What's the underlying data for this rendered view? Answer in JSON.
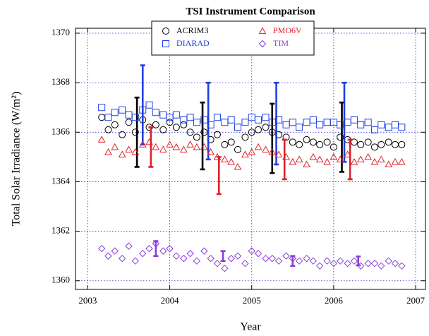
{
  "chart_data": {
    "type": "scatter",
    "title": "TSI Instrument Comparison",
    "x_label": "Year",
    "y_label": "Total Solar Irradiance (W/m²)",
    "xlim": [
      2002.85,
      2007.12
    ],
    "ylim": [
      1359.65,
      1370.2
    ],
    "xticks": [
      2003,
      2004,
      2005,
      2006,
      2007
    ],
    "yticks": [
      1360,
      1362,
      1364,
      1366,
      1368,
      1370
    ],
    "grid": true,
    "grid_color": "#2a2ad0",
    "legend": "upper center",
    "x": [
      2003.17,
      2003.25,
      2003.33,
      2003.42,
      2003.5,
      2003.58,
      2003.67,
      2003.75,
      2003.83,
      2003.92,
      2004.0,
      2004.08,
      2004.17,
      2004.25,
      2004.33,
      2004.42,
      2004.5,
      2004.58,
      2004.67,
      2004.75,
      2004.83,
      2004.92,
      2005.0,
      2005.08,
      2005.17,
      2005.25,
      2005.33,
      2005.42,
      2005.5,
      2005.58,
      2005.67,
      2005.75,
      2005.83,
      2005.92,
      2006.0,
      2006.08,
      2006.17,
      2006.25,
      2006.33,
      2006.42,
      2006.5,
      2006.58,
      2006.67,
      2006.75,
      2006.83
    ],
    "series": [
      {
        "name": "ACRIM3",
        "color": "#000000",
        "marker": "circle",
        "values": [
          1366.6,
          1366.1,
          1366.3,
          1365.9,
          1366.4,
          1366.0,
          1366.5,
          1366.2,
          1366.3,
          1366.1,
          1366.4,
          1366.2,
          1366.3,
          1366.0,
          1365.8,
          1366.0,
          1365.7,
          1365.9,
          1365.5,
          1365.6,
          1365.3,
          1365.8,
          1366.0,
          1366.1,
          1366.2,
          1366.0,
          1365.9,
          1365.8,
          1365.6,
          1365.5,
          1365.7,
          1365.6,
          1365.5,
          1365.6,
          1365.4,
          1365.8,
          1365.7,
          1365.6,
          1365.5,
          1365.6,
          1365.4,
          1365.5,
          1365.6,
          1365.5,
          1365.5
        ],
        "error_bars": {
          "x": [
            2003.6,
            2004.4,
            2005.25,
            2006.1
          ],
          "values": [
            1366.0,
            1365.85,
            1365.75,
            1365.8
          ],
          "errors": [
            1.4,
            1.35,
            1.4,
            1.4
          ]
        }
      },
      {
        "name": "DIARAD",
        "color": "#1f3fe0",
        "marker": "square",
        "values": [
          1367.0,
          1366.6,
          1366.8,
          1366.9,
          1366.7,
          1366.6,
          1366.9,
          1367.1,
          1366.8,
          1366.7,
          1366.6,
          1366.7,
          1366.5,
          1366.6,
          1366.4,
          1366.5,
          1366.3,
          1366.6,
          1366.4,
          1366.5,
          1366.2,
          1366.4,
          1366.6,
          1366.5,
          1366.6,
          1366.4,
          1366.5,
          1366.3,
          1366.4,
          1366.2,
          1366.4,
          1366.5,
          1366.3,
          1366.4,
          1366.4,
          1366.3,
          1366.4,
          1366.5,
          1366.3,
          1366.4,
          1366.1,
          1366.3,
          1366.2,
          1366.3,
          1366.2
        ],
        "error_bars": {
          "x": [
            2003.67,
            2004.47,
            2005.3,
            2006.13
          ],
          "values": [
            1367.1,
            1366.45,
            1366.35,
            1366.4
          ],
          "errors": [
            1.6,
            1.55,
            1.65,
            1.6
          ]
        }
      },
      {
        "name": "PMO6V",
        "color": "#e0202a",
        "marker": "triangle",
        "values": [
          1365.7,
          1365.2,
          1365.4,
          1365.1,
          1365.3,
          1365.2,
          1365.5,
          1365.6,
          1365.4,
          1365.3,
          1365.5,
          1365.4,
          1365.3,
          1365.5,
          1365.4,
          1365.4,
          1365.2,
          1365.0,
          1364.9,
          1364.8,
          1364.6,
          1365.1,
          1365.2,
          1365.4,
          1365.3,
          1365.2,
          1365.1,
          1365.0,
          1364.8,
          1364.9,
          1364.7,
          1365.0,
          1364.9,
          1364.8,
          1365.0,
          1364.9,
          1365.1,
          1364.8,
          1364.9,
          1365.0,
          1364.8,
          1364.9,
          1364.7,
          1364.8,
          1364.8
        ],
        "error_bars": {
          "x": [
            2003.77,
            2004.6,
            2005.4,
            2006.2
          ],
          "values": [
            1365.4,
            1364.25,
            1364.9,
            1364.9
          ],
          "errors": [
            0.8,
            0.75,
            0.8,
            0.8
          ]
        }
      },
      {
        "name": "TIM",
        "color": "#8a3fd8",
        "marker": "diamond",
        "values": [
          1361.3,
          1361.0,
          1361.2,
          1360.9,
          1361.4,
          1360.8,
          1361.1,
          1361.3,
          1361.5,
          1361.2,
          1361.3,
          1361.0,
          1360.9,
          1361.1,
          1360.8,
          1361.2,
          1360.9,
          1360.7,
          1360.5,
          1360.9,
          1361.0,
          1360.7,
          1361.2,
          1361.1,
          1360.9,
          1360.9,
          1360.8,
          1361.0,
          1360.9,
          1360.8,
          1360.9,
          1360.8,
          1360.6,
          1360.8,
          1360.7,
          1360.8,
          1360.7,
          1360.8,
          1360.6,
          1360.7,
          1360.7,
          1360.6,
          1360.8,
          1360.7,
          1360.6
        ],
        "error_bars": {
          "x": [
            2003.83,
            2004.65,
            2005.5,
            2006.3
          ],
          "values": [
            1361.3,
            1361.0,
            1360.8,
            1360.8
          ],
          "errors": [
            0.3,
            0.2,
            0.2,
            0.18
          ]
        }
      }
    ]
  }
}
